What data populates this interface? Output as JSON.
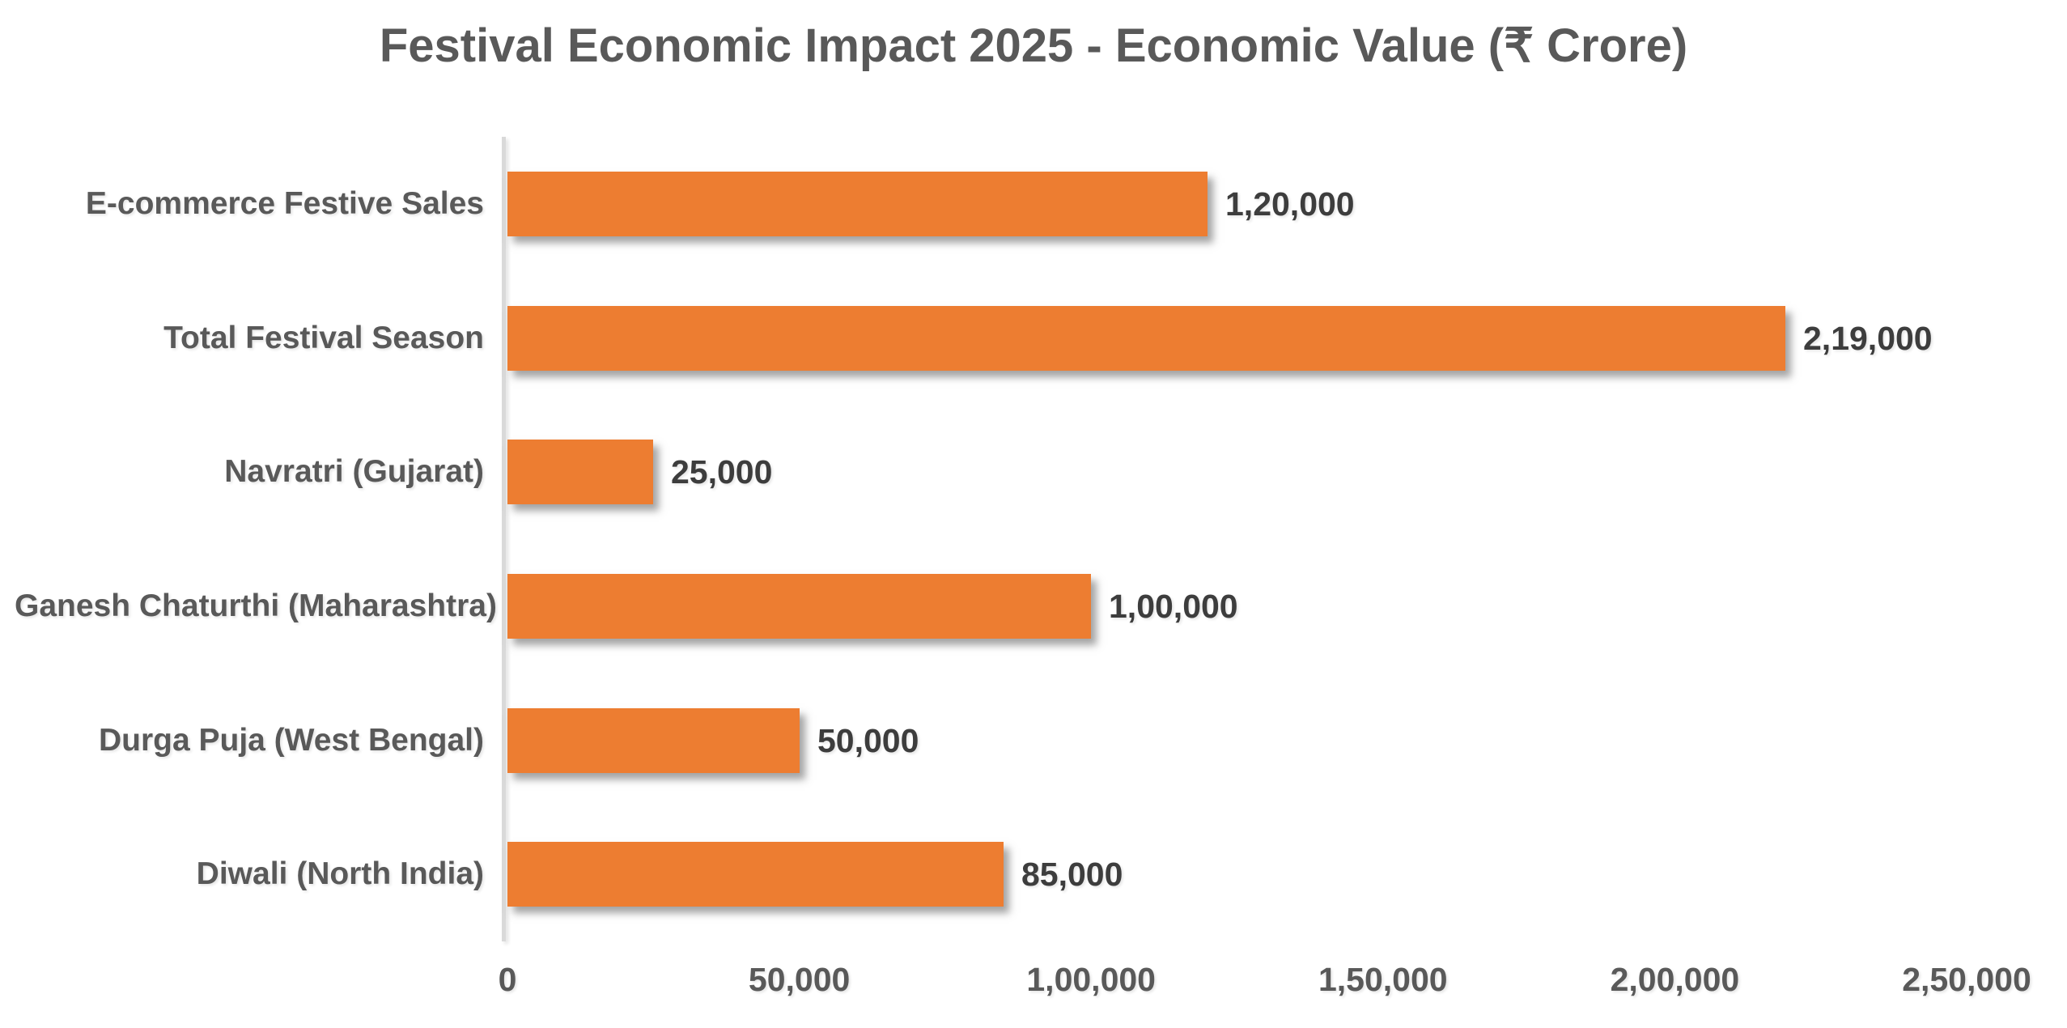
{
  "title": "Festival Economic Impact 2025 - Economic Value (₹ Crore)",
  "colors": {
    "bar": "#ed7d31",
    "axis_line": "#d9d9d9",
    "title_text": "#595959",
    "category_text": "#595959",
    "value_text": "#3d3d3d"
  },
  "chart_data": {
    "type": "bar",
    "orientation": "horizontal",
    "title": "Festival Economic Impact 2025 - Economic Value (₹ Crore)",
    "xlabel": "",
    "ylabel": "",
    "xlim": [
      0,
      250000
    ],
    "grid": false,
    "legend": false,
    "number_format": "indian",
    "rows_top_to_bottom": [
      {
        "category": "E-commerce Festive Sales",
        "value": 120000,
        "value_label": "1,20,000"
      },
      {
        "category": "Total Festival Season",
        "value": 219000,
        "value_label": "2,19,000"
      },
      {
        "category": "Navratri (Gujarat)",
        "value": 25000,
        "value_label": "25,000"
      },
      {
        "category": "Ganesh Chaturthi (Maharashtra)",
        "value": 100000,
        "value_label": "1,00,000"
      },
      {
        "category": "Durga Puja (West Bengal)",
        "value": 50000,
        "value_label": "50,000"
      },
      {
        "category": "Diwali (North India)",
        "value": 85000,
        "value_label": "85,000"
      }
    ],
    "x_axis": {
      "tick_values": [
        0,
        50000,
        100000,
        150000,
        200000,
        250000
      ],
      "tick_labels": [
        "0",
        "50,000",
        "1,00,000",
        "1,50,000",
        "2,00,000",
        "2,50,000"
      ]
    }
  }
}
